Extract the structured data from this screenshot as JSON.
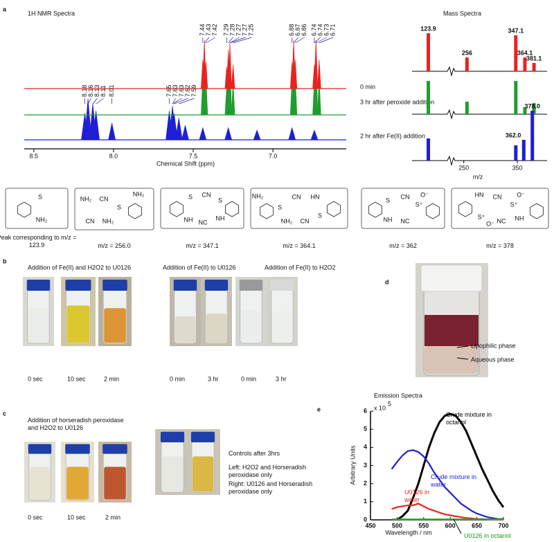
{
  "chart_data": [
    {
      "type": "spectrum",
      "title": "1H NMR Spectra",
      "x_label": "Chemical Shift (ppm)",
      "xlim": [
        8.56,
        6.54
      ],
      "xticks": [
        8.5,
        {
          "value": 8,
          "label": "8.0"
        },
        7.5,
        {
          "value": 7,
          "label": "7.0"
        }
      ],
      "series": [
        {
          "name": "0 min",
          "color": "#e8231f",
          "x": [
            7.44,
            7.43,
            7.42,
            7.29,
            7.28,
            7.27,
            7.25,
            6.88,
            6.87,
            6.86,
            6.74,
            6.73,
            6.71
          ],
          "values": [
            60,
            100,
            55,
            45,
            80,
            95,
            50,
            55,
            100,
            60,
            50,
            100,
            60
          ]
        },
        {
          "name": "3 hr after peroxide addition",
          "color": "#1e9e2e",
          "x": [
            7.44,
            7.43,
            7.42,
            7.29,
            7.28,
            7.27,
            7.25,
            6.88,
            6.87,
            6.86,
            6.74,
            6.73,
            6.71
          ],
          "values": [
            80,
            140,
            75,
            60,
            115,
            135,
            70,
            75,
            145,
            80,
            70,
            145,
            80
          ]
        },
        {
          "name": "2 hr after Fe(II) addition",
          "color": "#1f1fd6",
          "x": [
            8.18,
            8.16,
            8.13,
            8.11,
            8.01,
            7.65,
            7.63,
            7.62,
            7.59,
            7.55,
            7.44,
            7.28,
            7.1,
            6.88,
            6.74
          ],
          "values": [
            55,
            85,
            75,
            60,
            35,
            60,
            70,
            55,
            45,
            30,
            25,
            25,
            20,
            25,
            20
          ]
        }
      ],
      "label_color": "#1a1aa6",
      "peak_labels_upper": [
        7.44,
        7.43,
        7.42,
        7.29,
        7.28,
        7.27,
        7.27,
        7.25,
        6.88,
        6.87,
        6.86,
        6.74,
        6.74,
        6.73,
        6.71
      ],
      "peak_labels_lower": [
        8.18,
        8.16,
        8.13,
        8.11,
        8.01,
        7.65,
        7.63,
        7.63,
        7.62,
        7.59
      ]
    },
    {
      "type": "stem",
      "title": "Mass Spectra",
      "x_label": "m/z",
      "xlim": [
        110,
        390
      ],
      "axis_break": [
        140,
        240
      ],
      "xticks": [
        250,
        350
      ],
      "series": [
        {
          "color": "#e8231f",
          "x": [
            123.9,
            256,
            347.1,
            364.1,
            381.1
          ],
          "values": [
            55,
            20,
            52,
            20,
            12
          ],
          "x_labels": [
            "123.9",
            "256",
            "347.1",
            "364.1",
            "381.1"
          ]
        },
        {
          "color": "#1e9e2e",
          "x": [
            123.9,
            256,
            347.1,
            364.1,
            381.1
          ],
          "values": [
            48,
            18,
            48,
            10,
            16
          ]
        },
        {
          "color": "#1f1fd6",
          "x": [
            123.9,
            347.1,
            362.0,
            378.0
          ],
          "values": [
            32,
            22,
            30,
            72
          ],
          "x_labels": [
            null,
            null,
            "362.0",
            "378.0"
          ]
        }
      ]
    },
    {
      "type": "line",
      "title": "Emission Spectra",
      "x_label": "Wavelength / nm",
      "y_label": "Arbitrary Units",
      "y_multiplier": {
        "base": "x 10",
        "exponent": "5"
      },
      "xlim": [
        450,
        700
      ],
      "xticks": [
        450,
        500,
        550,
        600,
        650,
        700
      ],
      "ylim": [
        0,
        6
      ],
      "yticks": [
        0,
        1,
        2,
        3,
        4,
        5,
        6
      ],
      "x": [
        490,
        500,
        510,
        520,
        530,
        540,
        550,
        560,
        570,
        580,
        590,
        600,
        610,
        620,
        630,
        640,
        650,
        660,
        670,
        680,
        690,
        700
      ],
      "series": [
        {
          "name": "Crude mixture in octanol",
          "color": "#000000",
          "values": [
            null,
            0,
            0.2,
            0.5,
            1.2,
            2.0,
            3.0,
            4.0,
            4.8,
            5.4,
            5.75,
            5.85,
            5.75,
            5.4,
            4.9,
            4.2,
            3.5,
            2.8,
            2.2,
            1.6,
            1.1,
            0.7
          ]
        },
        {
          "name": "Crude mixture in water",
          "color": "#1f1fd6",
          "values": [
            2.8,
            3.2,
            3.55,
            3.8,
            3.85,
            3.75,
            3.5,
            3.1,
            2.6,
            2.2,
            1.8,
            1.5,
            1.2,
            0.9,
            0.7,
            0.5,
            0.35,
            0.25,
            0.15,
            0.1,
            0.05,
            0.05
          ]
        },
        {
          "name": "U0126 in water",
          "color": "#e8231f",
          "values": [
            0.6,
            0.7,
            0.75,
            0.8,
            0.8,
            0.9,
            0.75,
            0.6,
            0.5,
            0.4,
            0.3,
            0.25,
            0.2,
            0.15,
            0.1,
            0.08,
            0.05,
            0.05,
            0.03,
            0.02,
            0.02,
            0.02
          ]
        },
        {
          "name": "U0126 in octanol",
          "color": "#22b022",
          "values": [
            0.03,
            0.03,
            0.03,
            0.03,
            0.03,
            0.03,
            0.03,
            0.03,
            0.03,
            0.03,
            0.03,
            0.03,
            0.03,
            0.03,
            0.03,
            0.03,
            0.03,
            0.03,
            0.03,
            0.03,
            0.03,
            0.03
          ]
        }
      ]
    }
  ],
  "panel_labels": [
    "a",
    "b",
    "c",
    "d",
    "e"
  ],
  "structures": [
    {
      "atoms": [
        "S",
        "NH₂"
      ],
      "caption": "Peak corresponding to m/z = 123.9"
    },
    {
      "atoms": [
        "NH₂",
        "CN",
        "S",
        "NH₂",
        "CN",
        "NH₂"
      ],
      "caption": "m/z = 256.0"
    },
    {
      "atoms": [
        "S",
        "CN",
        "S",
        "NH",
        "NC",
        "NH"
      ],
      "caption": "m/z = 347.1"
    },
    {
      "atoms": [
        "NH₂",
        "S",
        "CN",
        "HN",
        "NH₂",
        "CN",
        "S"
      ],
      "caption": "m/z = 364.1"
    },
    {
      "atoms": [
        "S",
        "CN",
        "S⁺",
        "O⁻",
        "NH",
        "NC"
      ],
      "caption": "m/z = 362"
    },
    {
      "atoms": [
        "HN",
        "CN",
        "S⁺",
        "O⁻",
        "S⁺",
        "O⁻",
        "NC",
        "NH"
      ],
      "caption": "m/z = 378"
    }
  ],
  "panel_b": {
    "groups": [
      {
        "title": "Addition of Fe(II) and H2O2 to U0126",
        "captions": [
          "0 sec",
          "10 sec",
          "2 min"
        ]
      },
      {
        "title": "Addition of Fe(II) to U0126",
        "captions": [
          "0 min",
          "3 hr"
        ]
      },
      {
        "title": "Addition of Fe(II) to H2O2",
        "captions": [
          "0 min",
          "3 hr"
        ]
      }
    ]
  },
  "panel_c": {
    "title": "Addition of horseradish peroxidase and H2O2 to U0126",
    "captions": [
      "0 sec",
      "10 sec",
      "2 min"
    ],
    "controls_title": "Controls after 3hrs",
    "controls_notes": [
      "Left: H2O2  and Horseradish peroxidase only",
      "Right: U0126 and Horseradish peroxidase only"
    ]
  },
  "panel_d": {
    "labels": [
      "Lipophilic phase",
      "Aqueous phase"
    ]
  }
}
